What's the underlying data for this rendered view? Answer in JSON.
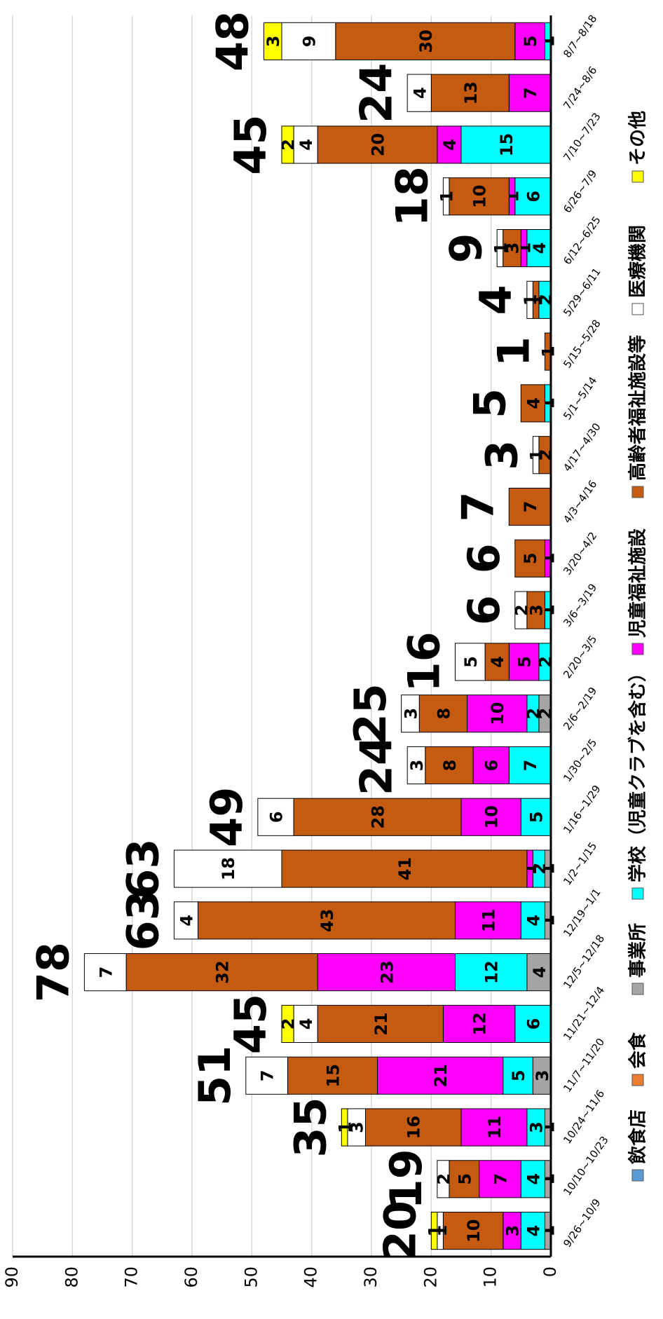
{
  "chart_data": {
    "type": "stacked_bar",
    "categories": [
      "9/26~10/9",
      "10/10~10/23",
      "10/24~11/6",
      "11/7~11/20",
      "11/21~12/4",
      "12/5~12/18",
      "12/19~1/1",
      "1/2~1/15",
      "1/16~1/29",
      "1/30~2/5",
      "2/6~2/19",
      "2/20~3/5",
      "3/6~3/19",
      "3/20~4/2",
      "4/3~4/16",
      "4/17~4/30",
      "5/1~5/14",
      "5/15~5/28",
      "5/29~6/11",
      "6/12~6/25",
      "6/26~7/9",
      "7/10~7/23",
      "7/24~8/6",
      "8/7~8/18"
    ],
    "series": [
      {
        "name": "飲食店",
        "color": "#5b9bd5",
        "values": [
          0,
          0,
          0,
          0,
          0,
          0,
          0,
          0,
          0,
          0,
          0,
          0,
          0,
          0,
          0,
          0,
          0,
          0,
          0,
          0,
          0,
          0,
          0,
          0
        ]
      },
      {
        "name": "会食",
        "color": "#ed7d31",
        "values": [
          0,
          0,
          0,
          0,
          0,
          0,
          0,
          0,
          0,
          0,
          0,
          0,
          0,
          0,
          0,
          0,
          0,
          0,
          0,
          0,
          0,
          0,
          0,
          0
        ]
      },
      {
        "name": "事業所",
        "color": "#a5a5a5",
        "values": [
          1,
          1,
          1,
          3,
          0,
          4,
          1,
          1,
          0,
          0,
          2,
          0,
          0,
          0,
          0,
          0,
          0,
          0,
          0,
          0,
          0,
          0,
          0,
          0
        ]
      },
      {
        "name": "学校（児童クラブを含む）",
        "color": "#00ffff",
        "values": [
          4,
          4,
          3,
          5,
          6,
          12,
          4,
          2,
          5,
          7,
          2,
          2,
          1,
          0,
          0,
          0,
          1,
          0,
          2,
          4,
          6,
          15,
          0,
          1
        ]
      },
      {
        "name": "児童福祉施設",
        "color": "#ff00ff",
        "values": [
          3,
          7,
          11,
          21,
          12,
          23,
          11,
          1,
          10,
          6,
          10,
          5,
          0,
          1,
          0,
          0,
          0,
          0,
          0,
          1,
          1,
          4,
          7,
          5
        ]
      },
      {
        "name": "高齢者福祉施設等",
        "color": "#c55a11",
        "values": [
          10,
          5,
          16,
          15,
          21,
          32,
          43,
          41,
          28,
          8,
          8,
          4,
          3,
          5,
          7,
          2,
          4,
          1,
          1,
          3,
          10,
          20,
          13,
          30
        ]
      },
      {
        "name": "医療機関",
        "color": "#ffffff",
        "values": [
          1,
          2,
          3,
          7,
          4,
          7,
          4,
          18,
          6,
          3,
          3,
          5,
          2,
          0,
          0,
          1,
          0,
          0,
          1,
          1,
          1,
          4,
          4,
          9
        ]
      },
      {
        "name": "その他",
        "color": "#ffff00",
        "values": [
          1,
          0,
          1,
          0,
          2,
          0,
          0,
          0,
          0,
          0,
          0,
          0,
          0,
          0,
          0,
          0,
          0,
          0,
          0,
          0,
          0,
          2,
          0,
          3
        ]
      }
    ],
    "totals": [
      20,
      19,
      35,
      51,
      45,
      78,
      63,
      63,
      49,
      24,
      25,
      16,
      6,
      6,
      7,
      3,
      5,
      1,
      4,
      9,
      18,
      45,
      24,
      48
    ],
    "ylim": [
      0,
      90
    ],
    "yticks": [
      0,
      10,
      20,
      30,
      40,
      50,
      60,
      70,
      80,
      90
    ],
    "grid": true
  }
}
